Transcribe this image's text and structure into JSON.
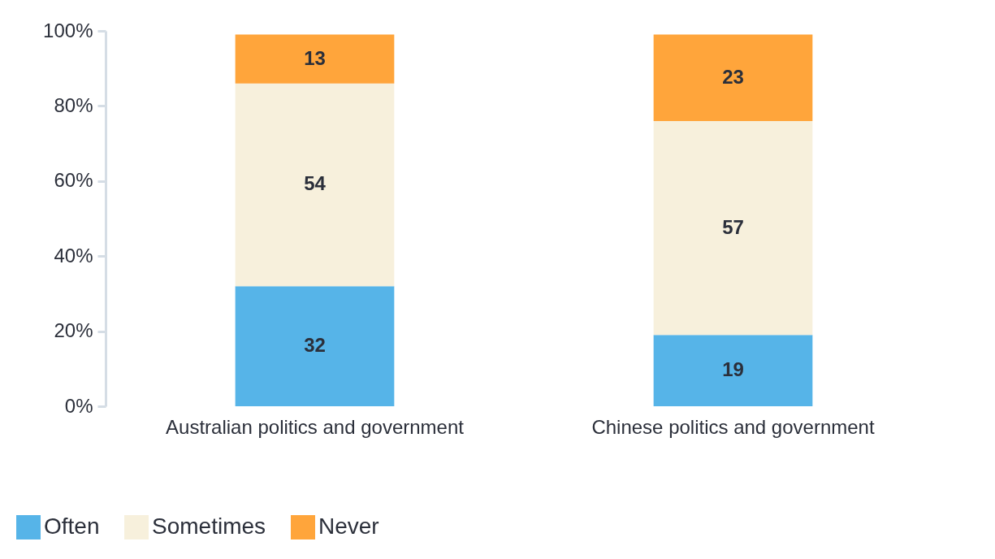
{
  "chart_data": {
    "type": "bar",
    "stacked": true,
    "categories": [
      "Australian politics and government",
      "Chinese politics and government"
    ],
    "series": [
      {
        "name": "Often",
        "color": "#56b4e8",
        "values": [
          32,
          19
        ]
      },
      {
        "name": "Sometimes",
        "color": "#f7f0dc",
        "values": [
          54,
          57
        ]
      },
      {
        "name": "Never",
        "color": "#ffa53b",
        "values": [
          13,
          23
        ]
      }
    ],
    "ylim": [
      0,
      100
    ],
    "yticks": [
      {
        "value": 0,
        "label": "0%"
      },
      {
        "value": 20,
        "label": "20%"
      },
      {
        "value": 40,
        "label": "40%"
      },
      {
        "value": 60,
        "label": "60%"
      },
      {
        "value": 80,
        "label": "80%"
      },
      {
        "value": 100,
        "label": "100%"
      }
    ],
    "data_labels": true,
    "grid": false,
    "legend": "bottom left"
  }
}
